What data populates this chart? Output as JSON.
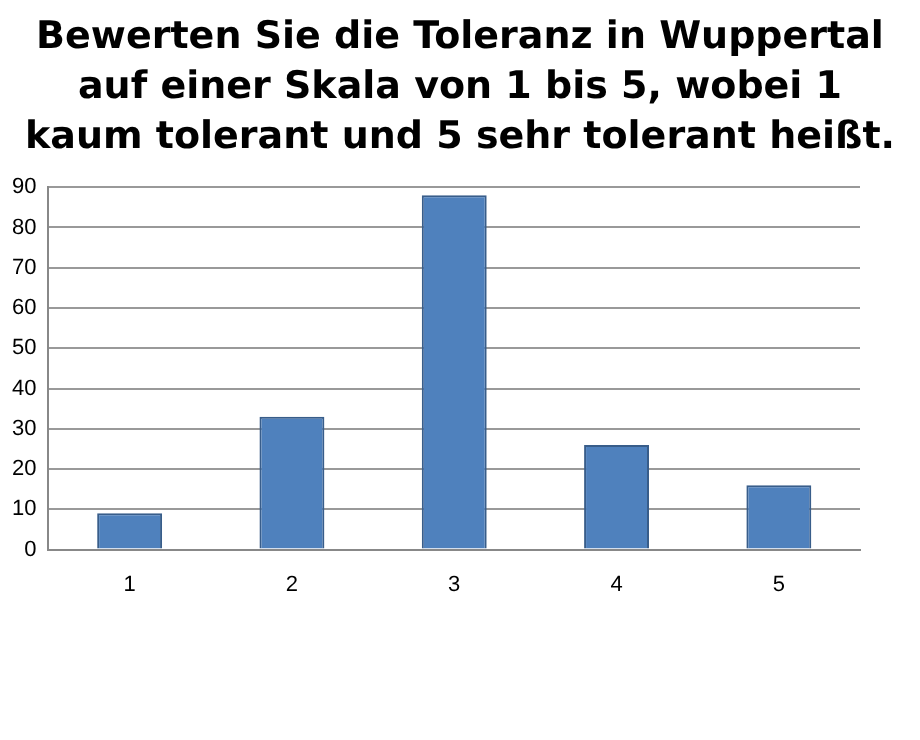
{
  "chart_data": {
    "type": "bar",
    "title": "Bewerten Sie die Toleranz in Wuppertal auf einer Skala von 1 bis 5, wobei 1 kaum tolerant und 5 sehr tolerant heißt.",
    "categories": [
      "1",
      "2",
      "3",
      "4",
      "5"
    ],
    "values": [
      9,
      33,
      88,
      26,
      16
    ],
    "color": "#4f81bd",
    "ylim": [
      0,
      90
    ],
    "yticks": [
      0,
      10,
      20,
      30,
      40,
      50,
      60,
      70,
      80,
      90
    ],
    "grid": "y",
    "legend": false
  }
}
